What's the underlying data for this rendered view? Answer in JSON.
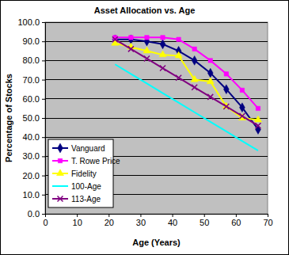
{
  "chart_data": {
    "type": "line",
    "title": "Asset Allocation vs. Age",
    "x_label": "Age (Years)",
    "y_label": "Percentage of Stocks",
    "x": [
      22,
      27,
      32,
      37,
      42,
      47,
      52,
      57,
      62,
      67
    ],
    "series": [
      {
        "name": "Vanguard",
        "color": "#000080",
        "marker": "diamond",
        "values": [
          91,
          91,
          90,
          88.5,
          85,
          80,
          73.5,
          65,
          55.5,
          44
        ]
      },
      {
        "name": "T. Rowe Price",
        "color": "#ff00ff",
        "marker": "square",
        "values": [
          92,
          92,
          92,
          92,
          91,
          86,
          80,
          73,
          64.5,
          55
        ]
      },
      {
        "name": "Fidelity",
        "color": "#ffff00",
        "marker": "triangle",
        "values": [
          89,
          87,
          85,
          83,
          82.5,
          70,
          69,
          56,
          50,
          49
        ]
      },
      {
        "name": "100-Age",
        "color": "#00ffff",
        "marker": "none",
        "values": [
          78,
          73,
          68,
          63,
          58,
          53,
          48,
          43,
          38,
          33
        ]
      },
      {
        "name": "113-Age",
        "color": "#800080",
        "marker": "x",
        "values": [
          91,
          86,
          81,
          76,
          71,
          66,
          61,
          56,
          51,
          46
        ]
      }
    ],
    "xlim": [
      0,
      70
    ],
    "xticks": [
      0,
      10,
      20,
      30,
      40,
      50,
      60,
      70
    ],
    "ylim": [
      0,
      100
    ],
    "yticks": [
      {
        "value": 0,
        "label": "0.0"
      },
      {
        "value": 10,
        "label": "10.0"
      },
      {
        "value": 20,
        "label": "20.0"
      },
      {
        "value": 30,
        "label": "30.0"
      },
      {
        "value": 40,
        "label": "40.0"
      },
      {
        "value": 50,
        "label": "50.0"
      },
      {
        "value": 60,
        "label": "60.0"
      },
      {
        "value": 70,
        "label": "70.0"
      },
      {
        "value": 80,
        "label": "80.0"
      },
      {
        "value": 90,
        "label": "90.0"
      },
      {
        "value": 100,
        "label": "100.0"
      }
    ],
    "grid": true,
    "legend": "lower left"
  }
}
